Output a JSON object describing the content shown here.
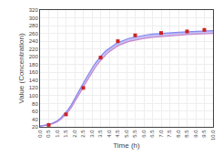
{
  "chart_data": {
    "type": "line",
    "xlabel": "Time (h)",
    "ylabel": "Value (Concentration)",
    "xlim": [
      0.0,
      10.0
    ],
    "ylim": [
      20,
      320
    ],
    "xticks": [
      {
        "value": 0,
        "label": "0.0"
      },
      0.5,
      {
        "value": 1,
        "label": "1.0"
      },
      1.5,
      {
        "value": 2,
        "label": "2.0"
      },
      2.5,
      {
        "value": 3,
        "label": "3.0"
      },
      3.5,
      {
        "value": 4,
        "label": "4.0"
      },
      4.5,
      {
        "value": 5,
        "label": "5.0"
      },
      5.5,
      {
        "value": 6,
        "label": "6.0"
      },
      6.5,
      {
        "value": 7,
        "label": "7.0"
      },
      7.5,
      {
        "value": 8,
        "label": "8.0"
      },
      8.5,
      {
        "value": 9,
        "label": "9.0"
      },
      9.5,
      {
        "value": 10,
        "label": "10.0"
      }
    ],
    "yticks": [
      20,
      40,
      60,
      80,
      100,
      120,
      140,
      160,
      180,
      200,
      220,
      240,
      260,
      280,
      300,
      320
    ],
    "grid": true,
    "series": [
      {
        "type": "line",
        "color": "#cc88cc",
        "x": [
          0.0,
          0.2,
          0.4,
          0.6,
          0.8,
          1.0,
          1.2,
          1.4,
          1.6,
          1.8,
          2.0,
          2.2,
          2.4,
          2.6,
          2.8,
          3.0,
          3.2,
          3.4,
          3.6,
          3.8,
          4.0,
          4.2,
          4.4,
          4.6,
          4.8,
          5.0,
          5.2,
          5.4,
          5.6,
          5.8,
          6.0,
          6.5,
          7.0,
          7.5,
          8.0,
          8.5,
          9.0,
          9.5,
          10.0
        ],
        "values": [
          22,
          23,
          24,
          26,
          29,
          33,
          39,
          47,
          57,
          69,
          83,
          98,
          114,
          130,
          145,
          160,
          173,
          185,
          196,
          205,
          213,
          220,
          225,
          230,
          234,
          237,
          240,
          242,
          244,
          246,
          247,
          250,
          252,
          254,
          256,
          257,
          258,
          259,
          260
        ]
      },
      {
        "type": "area",
        "color": "#8888ee",
        "x": [
          0.0,
          0.2,
          0.4,
          0.6,
          0.8,
          1.0,
          1.2,
          1.4,
          1.6,
          1.8,
          2.0,
          2.2,
          2.4,
          2.6,
          2.8,
          3.0,
          3.2,
          3.4,
          3.6,
          3.8,
          4.0,
          4.2,
          4.4,
          4.6,
          4.8,
          5.0,
          5.2,
          5.4,
          5.6,
          5.8,
          6.0,
          6.5,
          7.0,
          7.5,
          8.0,
          8.5,
          9.0,
          9.5,
          10.0
        ],
        "values": [
          22,
          23,
          25,
          27,
          31,
          36,
          43,
          52,
          63,
          76,
          91,
          107,
          124,
          140,
          156,
          170,
          184,
          196,
          206,
          215,
          222,
          228,
          234,
          238,
          242,
          245,
          248,
          250,
          252,
          254,
          255,
          258,
          260,
          262,
          263,
          264,
          265,
          266,
          267
        ]
      },
      {
        "type": "scatter",
        "color": "#cc2222",
        "marker": "square",
        "x": [
          0.5,
          1.5,
          2.5,
          3.5,
          4.5,
          5.5,
          7.0,
          8.5,
          9.5
        ],
        "values": [
          25,
          52,
          120,
          198,
          240,
          255,
          261,
          265,
          269
        ]
      }
    ]
  }
}
